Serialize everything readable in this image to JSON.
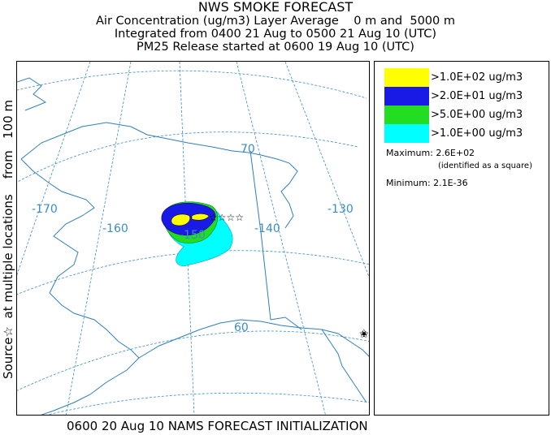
{
  "title": {
    "line1": "NWS SMOKE FORECAST",
    "line2": "Air Concentration (ug/m3) Layer Average    0 m and  5000 m",
    "line3": "Integrated from 0400 21 Aug to 0500 21 Aug 10 (UTC)",
    "line4": "PM25 Release started at 0600 19 Aug 10 (UTC)"
  },
  "side_label": "Source☆  at multiple locations    from   100 m",
  "map": {
    "lat_labels": [
      "70",
      "60"
    ],
    "lon_labels": [
      "-170",
      "-160",
      "-140",
      "-130"
    ],
    "plume_center_label": "-150",
    "colors": {
      "grid": "#3b8ec4",
      "coast": "#2f7fb8",
      "yellow": "#ffff00",
      "blue": "#0000ff",
      "green": "#00dd00",
      "cyan": "#00ffff"
    }
  },
  "legend": {
    "items": [
      {
        "label": ">1.0E+02 ug/m3",
        "color": "#ffff00"
      },
      {
        "label": ">2.0E+01 ug/m3",
        "color": "#1a1ae6"
      },
      {
        "label": ">5.0E+00 ug/m3",
        "color": "#22dd22"
      },
      {
        "label": ">1.0E+00 ug/m3",
        "color": "#00ffff"
      }
    ],
    "maximum_label": "Maximum: 2.6E+02",
    "maximum_note": "(identified as a square)",
    "minimum_label": "Minimum: 2.1E-36"
  },
  "footer": "0600 20 Aug 10 NAMS FORECAST INITIALIZATION"
}
